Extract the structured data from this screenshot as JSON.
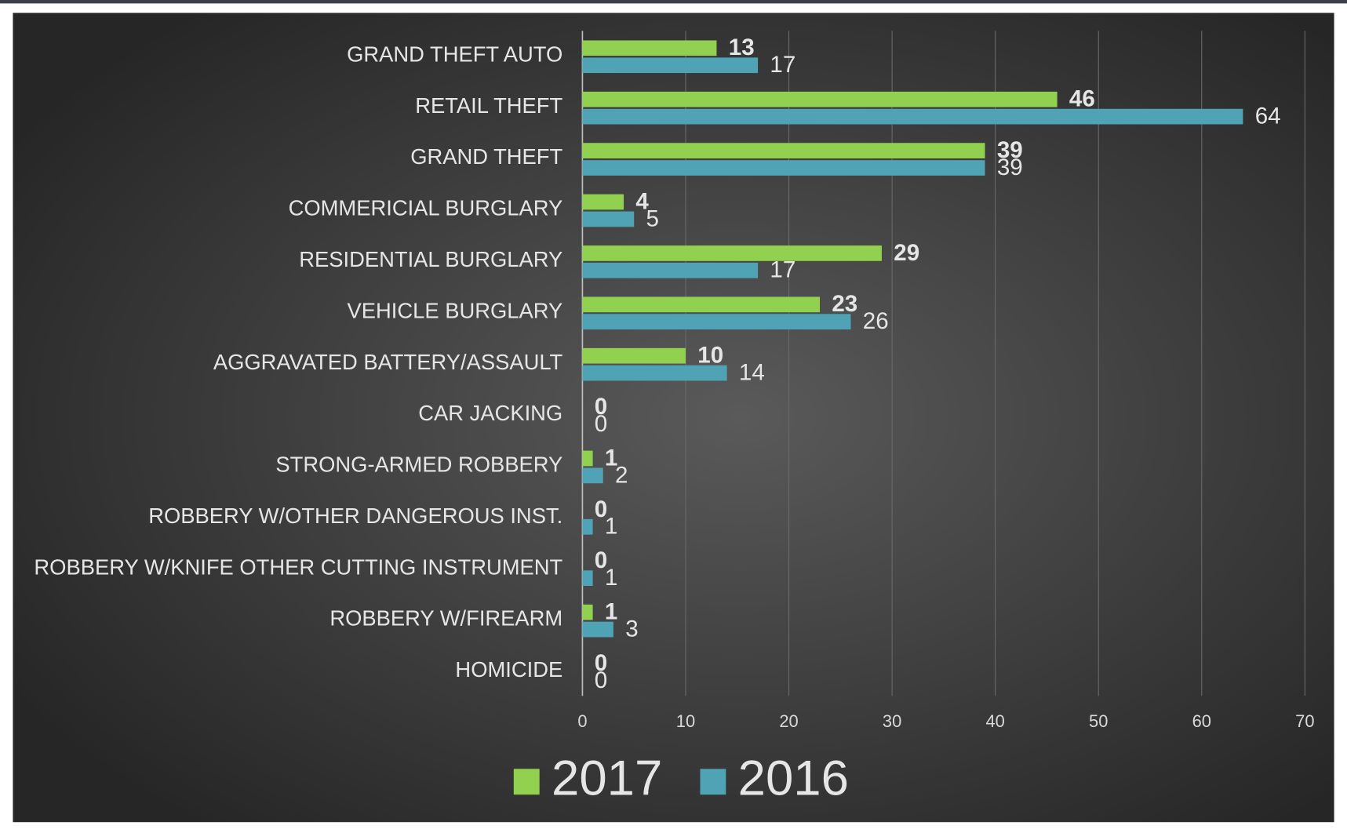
{
  "chart_data": {
    "type": "bar",
    "orientation": "horizontal",
    "categories": [
      "GRAND THEFT AUTO",
      "RETAIL THEFT",
      "GRAND THEFT",
      "COMMERICIAL BURGLARY",
      "RESIDENTIAL BURGLARY",
      "VEHICLE BURGLARY",
      "AGGRAVATED BATTERY/ASSAULT",
      "CAR JACKING",
      "STRONG-ARMED ROBBERY",
      "ROBBERY W/OTHER DANGEROUS INST.",
      "ROBBERY W/KNIFE OTHER CUTTING INSTRUMENT",
      "ROBBERY W/FIREARM",
      "HOMICIDE"
    ],
    "series": [
      {
        "name": "2017",
        "color": "#92d050",
        "values": [
          13,
          46,
          39,
          4,
          29,
          23,
          10,
          0,
          1,
          0,
          0,
          1,
          0
        ]
      },
      {
        "name": "2016",
        "color": "#4fa3b5",
        "values": [
          17,
          64,
          39,
          5,
          17,
          26,
          14,
          0,
          2,
          1,
          1,
          3,
          0
        ]
      }
    ],
    "xlim": [
      0,
      70
    ],
    "xticks": [
      0,
      10,
      20,
      30,
      40,
      50,
      60,
      70
    ],
    "grid": true,
    "legend": "bottom"
  }
}
